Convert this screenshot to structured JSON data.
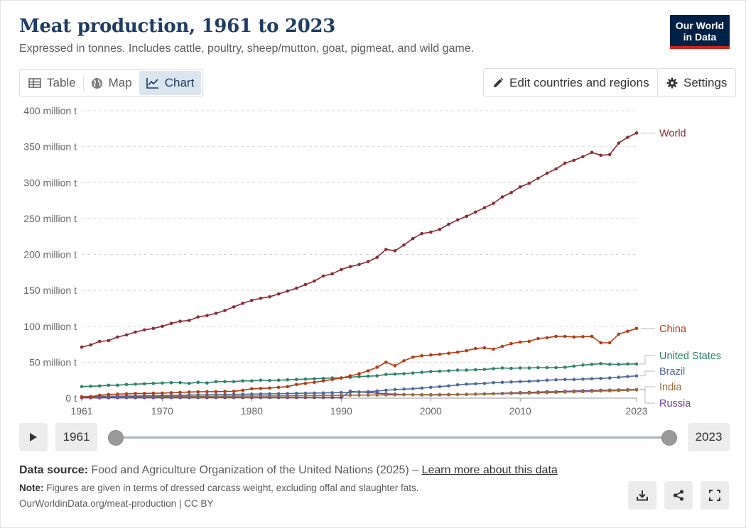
{
  "header": {
    "title": "Meat production, 1961 to 2023",
    "subtitle": "Expressed in tonnes. Includes cattle, poultry, sheep/mutton, goat, pigmeat, and wild game.",
    "logo_line1": "Our World",
    "logo_line2": "in Data"
  },
  "tabs": [
    {
      "label": "Table",
      "icon": "table-icon",
      "active": false
    },
    {
      "label": "Map",
      "icon": "globe-icon",
      "active": false
    },
    {
      "label": "Chart",
      "icon": "line-chart-icon",
      "active": true
    }
  ],
  "toolbar": {
    "edit_label": "Edit countries and regions",
    "settings_label": "Settings"
  },
  "timeline": {
    "start_year": "1961",
    "end_year": "2023",
    "start_value": 1961,
    "end_value": 2023
  },
  "footer": {
    "source_prefix": "Data source:",
    "source_text": "Food and Agriculture Organization of the United Nations (2025) – ",
    "source_link": "Learn more about this data",
    "note_prefix": "Note:",
    "note_text": "Figures are given in terms of dressed carcass weight, excluding offal and slaughter fats.",
    "credit": "OurWorldinData.org/meat-production | CC BY"
  },
  "colors": {
    "World": "#8b2b33",
    "China": "#b53b12",
    "United States": "#2b8465",
    "Brazil": "#4c6a9c",
    "India": "#9a6c36",
    "Russia": "#6d3e91",
    "title": "#1d3d63",
    "logo_bg": "#002147",
    "logo_accent": "#ce261e"
  },
  "chart_data": {
    "type": "line",
    "ylabel": "",
    "xlabel": "",
    "ylim": [
      0,
      400
    ],
    "xlim": [
      1961,
      2023
    ],
    "y_ticks": [
      0,
      50,
      100,
      150,
      200,
      250,
      300,
      350,
      400
    ],
    "y_tick_labels": [
      "0 t",
      "50 million t",
      "100 million t",
      "150 million t",
      "200 million t",
      "250 million t",
      "300 million t",
      "350 million t",
      "400 million t"
    ],
    "x_ticks": [
      1961,
      1970,
      1980,
      1990,
      2000,
      2010,
      2023
    ],
    "x_tick_labels": [
      "1961",
      "1970",
      "1980",
      "1990",
      "2000",
      "2010",
      "2023"
    ],
    "grid": "horizontal-dashed",
    "legend": "right-end-labels",
    "x": [
      1961,
      1962,
      1963,
      1964,
      1965,
      1966,
      1967,
      1968,
      1969,
      1970,
      1971,
      1972,
      1973,
      1974,
      1975,
      1976,
      1977,
      1978,
      1979,
      1980,
      1981,
      1982,
      1983,
      1984,
      1985,
      1986,
      1987,
      1988,
      1989,
      1990,
      1991,
      1992,
      1993,
      1994,
      1995,
      1996,
      1997,
      1998,
      1999,
      2000,
      2001,
      2002,
      2003,
      2004,
      2005,
      2006,
      2007,
      2008,
      2009,
      2010,
      2011,
      2012,
      2013,
      2014,
      2015,
      2016,
      2017,
      2018,
      2019,
      2020,
      2021,
      2022,
      2023
    ],
    "series": [
      {
        "name": "World",
        "values": [
          71,
          74,
          79,
          80,
          85,
          88,
          92,
          95,
          97,
          100,
          104,
          107,
          108,
          113,
          115,
          118,
          122,
          127,
          132,
          136,
          139,
          141,
          145,
          149,
          153,
          158,
          163,
          170,
          173,
          179,
          183,
          186,
          190,
          196,
          207,
          205,
          213,
          222,
          229,
          231,
          235,
          242,
          248,
          253,
          259,
          265,
          271,
          280,
          286,
          294,
          299,
          306,
          313,
          319,
          327,
          331,
          336,
          342,
          338,
          339,
          355,
          363,
          369
        ]
      },
      {
        "name": "China",
        "values": [
          1.5,
          2,
          4,
          5,
          5.5,
          6,
          6.5,
          6.5,
          6.8,
          7,
          7.5,
          8,
          8.5,
          8.8,
          9,
          9,
          9.3,
          9.5,
          11,
          13,
          13.5,
          14,
          15,
          16,
          19,
          20.5,
          22,
          24,
          26,
          28,
          31,
          34,
          38,
          43,
          50,
          45,
          52,
          57,
          59,
          60,
          61,
          62.5,
          64,
          66,
          69,
          70,
          68,
          72,
          76,
          78,
          79,
          83,
          84,
          86,
          86,
          85,
          85.5,
          86,
          77,
          77,
          89,
          93,
          97
        ]
      },
      {
        "name": "United States",
        "values": [
          16,
          16.5,
          17,
          18,
          18,
          19,
          19.5,
          20,
          20.5,
          21,
          21.5,
          21.5,
          20.5,
          22,
          21,
          23,
          23,
          23,
          24,
          24,
          25,
          24.5,
          25,
          25.5,
          26,
          26.5,
          27,
          27.5,
          28,
          28,
          29,
          30,
          30.5,
          31,
          33,
          33.5,
          34,
          35,
          36,
          37,
          37.5,
          38,
          39,
          39,
          39.5,
          40,
          41,
          42,
          41.5,
          42,
          42,
          42.5,
          42.5,
          42.5,
          43,
          44.5,
          46,
          47,
          48,
          47,
          47,
          47.5,
          47.5
        ]
      },
      {
        "name": "Brazil",
        "values": [
          2,
          2.2,
          2.4,
          2.5,
          2.7,
          2.9,
          3,
          3.2,
          3.4,
          3.6,
          3.8,
          4,
          4.2,
          4.4,
          4.6,
          4.8,
          5,
          5.2,
          5.4,
          5.6,
          5.8,
          6,
          6.2,
          6.4,
          6.6,
          6.8,
          7,
          7.2,
          7.5,
          7.8,
          8.2,
          8.6,
          9,
          10,
          11,
          12,
          12.5,
          13,
          14,
          15,
          16,
          17,
          18.5,
          19.5,
          20,
          20.5,
          21.5,
          22,
          22.5,
          23,
          23.5,
          24,
          25,
          25.5,
          26,
          26,
          26.5,
          27,
          27.5,
          28,
          29,
          30,
          31
        ]
      },
      {
        "name": "India",
        "values": [
          1.8,
          1.9,
          2,
          2,
          2.1,
          2.1,
          2.2,
          2.2,
          2.3,
          2.3,
          2.4,
          2.4,
          2.5,
          2.5,
          2.6,
          2.6,
          2.7,
          2.8,
          2.9,
          3,
          3,
          3.1,
          3.2,
          3.3,
          3.4,
          3.5,
          3.6,
          3.7,
          3.8,
          3.9,
          4,
          4.1,
          4.2,
          4.3,
          4.4,
          4.5,
          4.6,
          4.7,
          4.8,
          4.9,
          5,
          5.1,
          5.2,
          5.4,
          5.6,
          5.8,
          6,
          6.2,
          6.5,
          6.8,
          7,
          7.3,
          7.6,
          8,
          8.4,
          8.8,
          9,
          9.5,
          10,
          10.2,
          10.5,
          11,
          11.5
        ]
      },
      {
        "name": "Russia",
        "values": [
          0.5,
          0.5,
          0.5,
          0.5,
          0.6,
          0.6,
          0.6,
          0.6,
          0.6,
          0.7,
          0.7,
          0.7,
          0.7,
          0.7,
          0.7,
          0.8,
          0.8,
          0.8,
          0.8,
          0.8,
          0.8,
          0.9,
          0.9,
          0.9,
          0.9,
          1,
          1,
          1,
          1,
          1,
          9.5,
          8.5,
          8,
          7,
          6,
          5.5,
          5,
          4.7,
          4.4,
          4.4,
          4.5,
          4.7,
          5,
          5.2,
          5.5,
          5.8,
          6.2,
          6.6,
          7.2,
          7.6,
          8,
          8.4,
          8.8,
          9,
          9.5,
          9.9,
          10.2,
          10.6,
          11,
          11.2,
          11.4,
          11.7,
          12
        ]
      }
    ]
  }
}
